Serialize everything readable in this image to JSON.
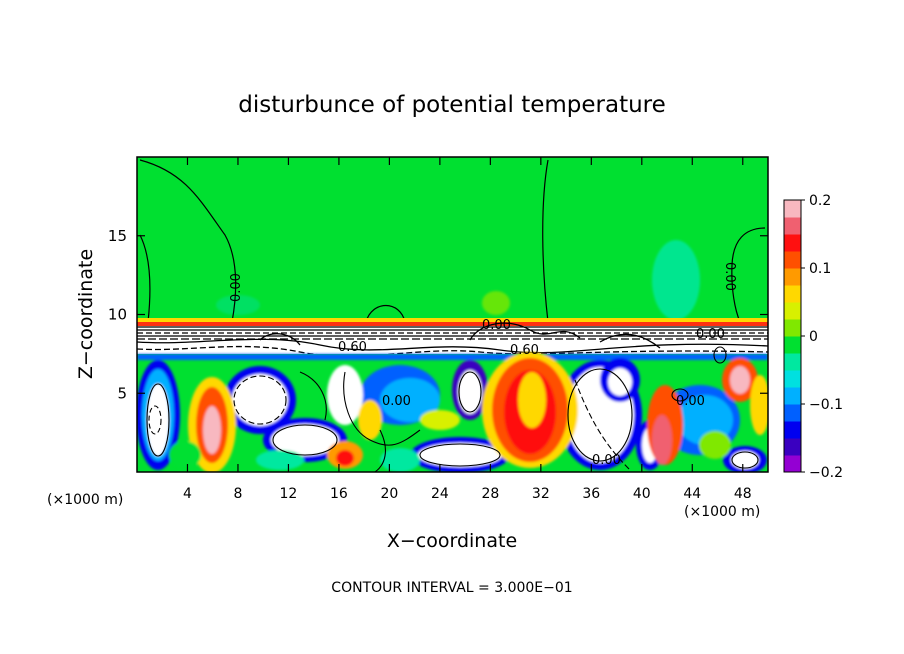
{
  "chart_data": {
    "type": "heatmap",
    "title": "disturbunce of potential temperature",
    "xlabel": "X−coordinate",
    "ylabel": "Z−coordinate",
    "x_unit": "(×1000 m)",
    "x_unit_right": "(×1000 m)",
    "footer": "CONTOUR INTERVAL = 3.000E−01",
    "xlim": [
      0,
      50
    ],
    "ylim": [
      0,
      20
    ],
    "x_ticks": [
      4,
      8,
      12,
      16,
      20,
      24,
      28,
      32,
      36,
      40,
      44,
      48
    ],
    "x_tick_labels": [
      "4",
      "8",
      "12",
      "16",
      "20",
      "24",
      "28",
      "32",
      "36",
      "40",
      "44",
      "48"
    ],
    "y_ticks": [
      5,
      10,
      15
    ],
    "y_tick_labels": [
      "5",
      "10",
      "15"
    ],
    "colorbar": {
      "min": -0.2,
      "max": 0.2,
      "ticks": [
        0.2,
        0.1,
        0,
        -0.1,
        -0.2
      ],
      "tick_labels": [
        "0.2",
        "0.1",
        "0",
        "−0.1",
        "−0.2"
      ],
      "colors": [
        "#9400d3",
        "#3a00c0",
        "#0000f0",
        "#0060ff",
        "#00b0ff",
        "#00e0e0",
        "#00e8a0",
        "#00e030",
        "#80e800",
        "#d8f000",
        "#ffd800",
        "#ff9a00",
        "#ff5000",
        "#ff1010",
        "#f06070",
        "#f8b8c0"
      ]
    },
    "contour_labels": [
      "0.00",
      "0.00",
      "0.00",
      "0.00",
      "0.60",
      "0.60",
      "0.00",
      "0.00",
      "0.00"
    ],
    "grid": false
  }
}
